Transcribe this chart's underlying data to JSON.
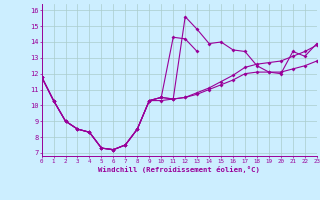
{
  "xlabel": "Windchill (Refroidissement éolien,°C)",
  "background_color": "#cceeff",
  "line_color": "#990099",
  "grid_color": "#aacccc",
  "x_ticks": [
    0,
    1,
    2,
    3,
    4,
    5,
    6,
    7,
    8,
    9,
    10,
    11,
    12,
    13,
    14,
    15,
    16,
    17,
    18,
    19,
    20,
    21,
    22,
    23
  ],
  "y_ticks": [
    7,
    8,
    9,
    10,
    11,
    12,
    13,
    14,
    15,
    16
  ],
  "xlim": [
    0,
    23
  ],
  "ylim": [
    6.8,
    16.4
  ],
  "series": [
    {
      "x": [
        0,
        1,
        2,
        3,
        4,
        5,
        6,
        7,
        8,
        9,
        10,
        11,
        12,
        13,
        14,
        15,
        16,
        17,
        18,
        19,
        20,
        21,
        22,
        23
      ],
      "y": [
        11.8,
        10.3,
        9.0,
        8.5,
        8.3,
        7.3,
        7.2,
        7.5,
        8.5,
        10.3,
        10.3,
        10.4,
        15.6,
        14.8,
        13.9,
        14.0,
        13.5,
        13.4,
        12.5,
        12.1,
        12.0,
        13.4,
        13.1,
        13.9
      ]
    },
    {
      "x": [
        0,
        1,
        2,
        3,
        4,
        5,
        6,
        7,
        8,
        9,
        10,
        11,
        12,
        13
      ],
      "y": [
        11.8,
        10.3,
        9.0,
        8.5,
        8.3,
        7.3,
        7.2,
        7.5,
        8.5,
        10.3,
        10.5,
        14.3,
        14.2,
        13.4
      ]
    },
    {
      "x": [
        0,
        1,
        2,
        3,
        4,
        5,
        6,
        7,
        8,
        9,
        10,
        11,
        12,
        13,
        14,
        15,
        16,
        17,
        18,
        19,
        20,
        21,
        22,
        23
      ],
      "y": [
        11.8,
        10.3,
        9.0,
        8.5,
        8.3,
        7.3,
        7.2,
        7.5,
        8.5,
        10.3,
        10.5,
        10.4,
        10.5,
        10.7,
        11.0,
        11.3,
        11.6,
        12.0,
        12.1,
        12.1,
        12.1,
        12.3,
        12.5,
        12.8
      ]
    },
    {
      "x": [
        0,
        1,
        2,
        3,
        4,
        5,
        6,
        7,
        8,
        9,
        10,
        11,
        12,
        13,
        14,
        15,
        16,
        17,
        18,
        19,
        20,
        21,
        22,
        23
      ],
      "y": [
        11.8,
        10.3,
        9.0,
        8.5,
        8.3,
        7.3,
        7.2,
        7.5,
        8.5,
        10.3,
        10.5,
        10.4,
        10.5,
        10.8,
        11.1,
        11.5,
        11.9,
        12.4,
        12.6,
        12.7,
        12.8,
        13.1,
        13.4,
        13.8
      ]
    }
  ]
}
